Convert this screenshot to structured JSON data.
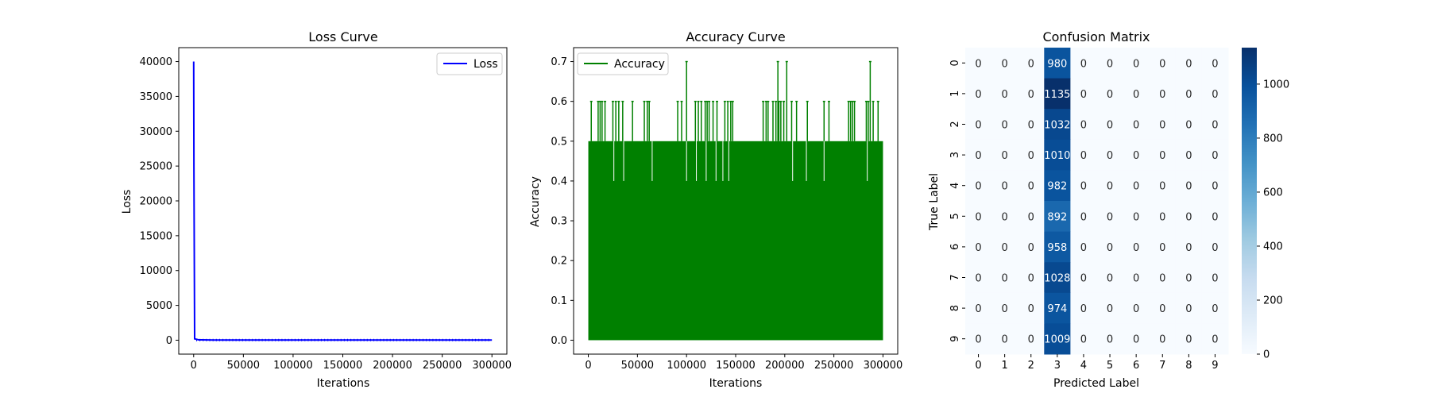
{
  "chart_data": [
    {
      "type": "line",
      "title": "Loss Curve",
      "xlabel": "Iterations",
      "ylabel": "Loss",
      "xlim": [
        -15000,
        315000
      ],
      "ylim": [
        -2000,
        42000
      ],
      "xticks": [
        0,
        50000,
        100000,
        150000,
        200000,
        250000,
        300000
      ],
      "yticks": [
        0,
        5000,
        10000,
        15000,
        20000,
        25000,
        30000,
        35000,
        40000
      ],
      "legend": "upper right",
      "grid": false,
      "series": [
        {
          "name": "Loss",
          "color": "#0000ff",
          "x": [
            0,
            300,
            1000,
            5000,
            20000,
            50000,
            100000,
            150000,
            200000,
            250000,
            300000
          ],
          "y": [
            40000,
            25000,
            200,
            50,
            30,
            20,
            20,
            20,
            20,
            20,
            20
          ]
        }
      ]
    },
    {
      "type": "line",
      "title": "Accuracy Curve",
      "xlabel": "Iterations",
      "ylabel": "Accuracy",
      "xlim": [
        -15000,
        315000
      ],
      "ylim": [
        -0.035,
        0.735
      ],
      "xticks": [
        0,
        50000,
        100000,
        150000,
        200000,
        250000,
        300000
      ],
      "yticks": [
        0.0,
        0.1,
        0.2,
        0.3,
        0.4,
        0.5,
        0.6,
        0.7
      ],
      "legend": "upper left",
      "grid": false,
      "series": [
        {
          "name": "Accuracy",
          "color": "#008000",
          "x_range": [
            0,
            300000
          ],
          "fill_range": [
            0.0,
            0.5
          ],
          "spikes_06": [
            3000,
            10000,
            12000,
            14000,
            17000,
            25000,
            28000,
            31000,
            35000,
            45000,
            57000,
            60000,
            62000,
            91000,
            95000,
            109000,
            112000,
            115000,
            119000,
            121000,
            123000,
            127000,
            131000,
            139000,
            142000,
            145000,
            147000,
            178000,
            181000,
            183000,
            188000,
            191000,
            194000,
            196000,
            199000,
            207000,
            212000,
            223000,
            240000,
            245000,
            265000,
            267000,
            269000,
            271000,
            283000,
            285000,
            290000,
            295000
          ],
          "spikes_07": [
            100000,
            193000,
            202000,
            287000
          ],
          "dips": [
            26000,
            36000,
            65000,
            100000,
            110000,
            120000,
            130000,
            137000,
            143000,
            208000,
            222000,
            240000,
            284000
          ]
        }
      ]
    },
    {
      "type": "heatmap",
      "title": "Confusion Matrix",
      "xlabel": "Predicted Label",
      "ylabel": "True Label",
      "x_categories": [
        "0",
        "1",
        "2",
        "3",
        "4",
        "5",
        "6",
        "7",
        "8",
        "9"
      ],
      "y_categories": [
        "0",
        "1",
        "2",
        "3",
        "4",
        "5",
        "6",
        "7",
        "8",
        "9"
      ],
      "colormap": "Blues",
      "colorbar_range": [
        0,
        1135
      ],
      "colorbar_ticks": [
        0,
        200,
        400,
        600,
        800,
        1000
      ],
      "matrix": [
        [
          0,
          0,
          0,
          980,
          0,
          0,
          0,
          0,
          0,
          0
        ],
        [
          0,
          0,
          0,
          1135,
          0,
          0,
          0,
          0,
          0,
          0
        ],
        [
          0,
          0,
          0,
          1032,
          0,
          0,
          0,
          0,
          0,
          0
        ],
        [
          0,
          0,
          0,
          1010,
          0,
          0,
          0,
          0,
          0,
          0
        ],
        [
          0,
          0,
          0,
          982,
          0,
          0,
          0,
          0,
          0,
          0
        ],
        [
          0,
          0,
          0,
          892,
          0,
          0,
          0,
          0,
          0,
          0
        ],
        [
          0,
          0,
          0,
          958,
          0,
          0,
          0,
          0,
          0,
          0
        ],
        [
          0,
          0,
          0,
          1028,
          0,
          0,
          0,
          0,
          0,
          0
        ],
        [
          0,
          0,
          0,
          974,
          0,
          0,
          0,
          0,
          0,
          0
        ],
        [
          0,
          0,
          0,
          1009,
          0,
          0,
          0,
          0,
          0,
          0
        ]
      ]
    }
  ]
}
